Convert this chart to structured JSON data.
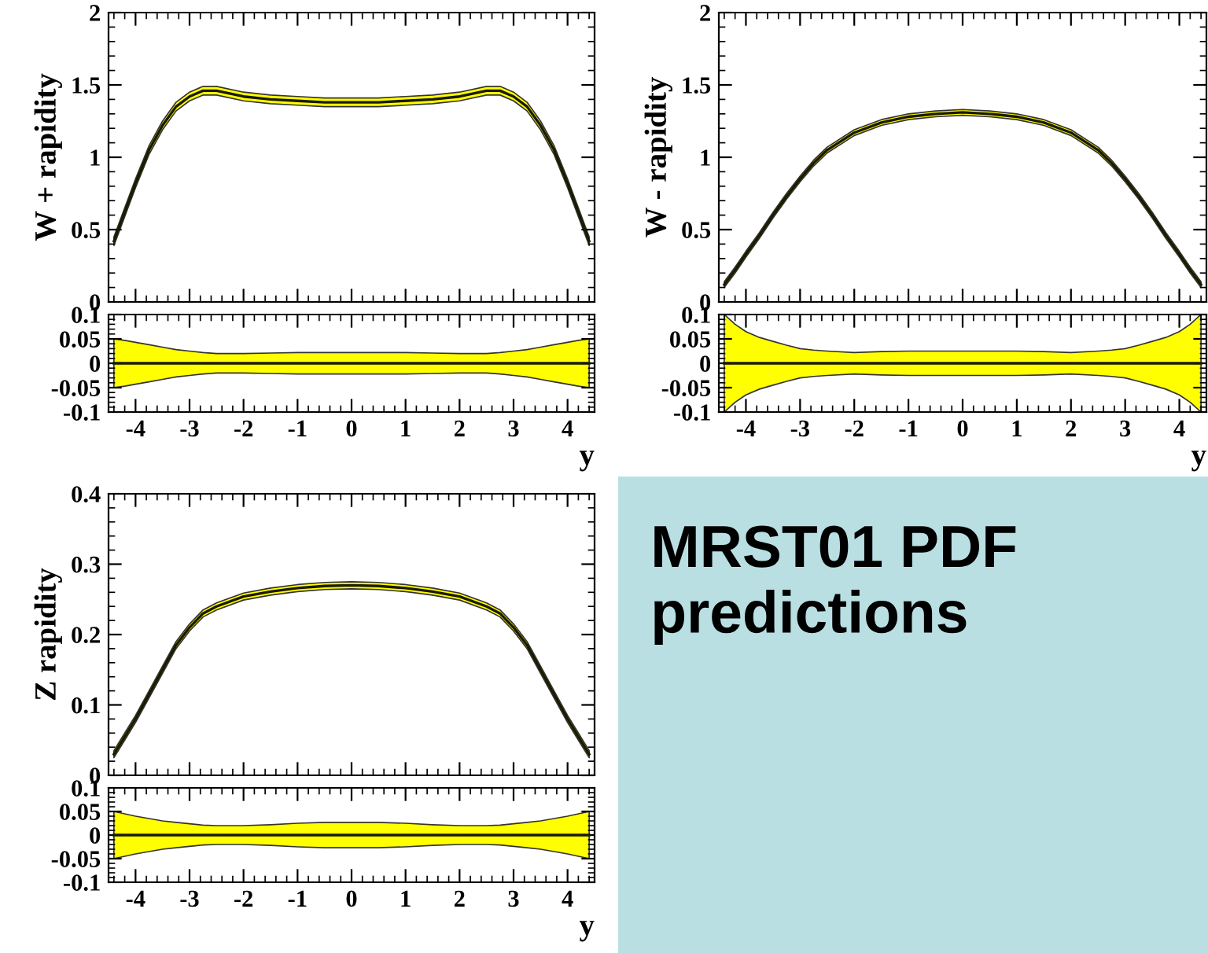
{
  "chart_data": [
    {
      "type": "line",
      "ylabel": "W + rapidity",
      "xlim": [
        -4.5,
        4.5
      ],
      "xticks": [
        -4,
        -3,
        -2,
        -1,
        0,
        1,
        2,
        3,
        4
      ],
      "ylim": [
        0,
        2
      ],
      "yticks": [
        0,
        0.5,
        1,
        1.5,
        2
      ],
      "tick_labels": "y",
      "x": [
        -4.4,
        -4.2,
        -4,
        -3.75,
        -3.5,
        -3.25,
        -3,
        -2.75,
        -2.5,
        -2,
        -1.5,
        -1,
        -0.5,
        0,
        0.5,
        1,
        1.5,
        2,
        2.5,
        2.75,
        3,
        3.25,
        3.5,
        3.75,
        4,
        4.2,
        4.4
      ],
      "series": [
        {
          "color": "#1a1a00",
          "values": [
            0.42,
            0.62,
            0.82,
            1.05,
            1.22,
            1.35,
            1.42,
            1.46,
            1.46,
            1.42,
            1.4,
            1.39,
            1.38,
            1.38,
            1.38,
            1.39,
            1.4,
            1.42,
            1.46,
            1.46,
            1.42,
            1.35,
            1.22,
            1.05,
            0.82,
            0.62,
            0.42
          ],
          "lower": [
            0.39,
            0.59,
            0.79,
            1.02,
            1.19,
            1.32,
            1.39,
            1.43,
            1.43,
            1.39,
            1.37,
            1.36,
            1.35,
            1.35,
            1.35,
            1.36,
            1.37,
            1.39,
            1.43,
            1.43,
            1.39,
            1.32,
            1.19,
            1.02,
            0.79,
            0.59,
            0.39
          ],
          "upper": [
            0.45,
            0.65,
            0.85,
            1.08,
            1.25,
            1.38,
            1.45,
            1.49,
            1.49,
            1.45,
            1.43,
            1.42,
            1.41,
            1.41,
            1.41,
            1.42,
            1.43,
            1.45,
            1.49,
            1.49,
            1.45,
            1.38,
            1.25,
            1.08,
            0.85,
            0.65,
            0.45
          ]
        }
      ]
    },
    {
      "type": "line",
      "xlabel": "y",
      "xlim": [
        -4.5,
        4.5
      ],
      "xticks": [
        -4,
        -3,
        -2,
        -1,
        0,
        1,
        2,
        3,
        4
      ],
      "ylim": [
        -0.1,
        0.1
      ],
      "yticks": [
        -0.1,
        -0.05,
        0,
        0.05,
        0.1
      ],
      "x": [
        -4.4,
        -4.2,
        -4,
        -3.75,
        -3.5,
        -3.25,
        -3,
        -2.75,
        -2.5,
        -2,
        -1.5,
        -1,
        -0.5,
        0,
        0.5,
        1,
        1.5,
        2,
        2.5,
        2.75,
        3,
        3.25,
        3.5,
        3.75,
        4,
        4.2,
        4.4
      ],
      "series": [
        {
          "color": "#1a1a00",
          "values": [
            0,
            0,
            0,
            0,
            0,
            0,
            0,
            0,
            0,
            0,
            0,
            0,
            0,
            0,
            0,
            0,
            0,
            0,
            0,
            0,
            0,
            0,
            0,
            0,
            0,
            0,
            0
          ],
          "lower": [
            -0.05,
            -0.047,
            -0.043,
            -0.038,
            -0.033,
            -0.028,
            -0.025,
            -0.022,
            -0.02,
            -0.02,
            -0.021,
            -0.022,
            -0.022,
            -0.022,
            -0.022,
            -0.022,
            -0.021,
            -0.02,
            -0.02,
            -0.022,
            -0.025,
            -0.028,
            -0.033,
            -0.038,
            -0.043,
            -0.047,
            -0.05
          ],
          "upper": [
            0.05,
            0.047,
            0.043,
            0.038,
            0.033,
            0.028,
            0.025,
            0.022,
            0.02,
            0.02,
            0.021,
            0.022,
            0.022,
            0.022,
            0.022,
            0.022,
            0.021,
            0.02,
            0.02,
            0.022,
            0.025,
            0.028,
            0.033,
            0.038,
            0.043,
            0.047,
            0.05
          ]
        }
      ]
    },
    {
      "type": "line",
      "ylabel": "W - rapidity",
      "xlim": [
        -4.5,
        4.5
      ],
      "xticks": [
        -4,
        -3,
        -2,
        -1,
        0,
        1,
        2,
        3,
        4
      ],
      "ylim": [
        0,
        2
      ],
      "yticks": [
        0,
        0.5,
        1,
        1.5,
        2
      ],
      "tick_labels": "y",
      "x": [
        -4.4,
        -4.2,
        -4,
        -3.75,
        -3.5,
        -3.25,
        -3,
        -2.75,
        -2.5,
        -2,
        -1.5,
        -1,
        -0.5,
        0,
        0.5,
        1,
        1.5,
        2,
        2.5,
        2.75,
        3,
        3.25,
        3.5,
        3.75,
        4,
        4.2,
        4.4
      ],
      "series": [
        {
          "color": "#1a1a00",
          "values": [
            0.12,
            0.22,
            0.33,
            0.46,
            0.6,
            0.73,
            0.85,
            0.96,
            1.05,
            1.17,
            1.24,
            1.28,
            1.3,
            1.31,
            1.3,
            1.28,
            1.24,
            1.17,
            1.05,
            0.96,
            0.85,
            0.73,
            0.6,
            0.46,
            0.33,
            0.22,
            0.12
          ],
          "lower": [
            0.1,
            0.2,
            0.31,
            0.44,
            0.58,
            0.71,
            0.83,
            0.94,
            1.03,
            1.15,
            1.22,
            1.26,
            1.28,
            1.29,
            1.28,
            1.26,
            1.22,
            1.15,
            1.03,
            0.94,
            0.83,
            0.71,
            0.58,
            0.44,
            0.31,
            0.2,
            0.1
          ],
          "upper": [
            0.14,
            0.24,
            0.35,
            0.48,
            0.62,
            0.75,
            0.87,
            0.98,
            1.07,
            1.19,
            1.26,
            1.3,
            1.32,
            1.33,
            1.32,
            1.3,
            1.26,
            1.19,
            1.07,
            0.98,
            0.87,
            0.75,
            0.62,
            0.48,
            0.35,
            0.24,
            0.14
          ]
        }
      ]
    },
    {
      "type": "line",
      "xlabel": "y",
      "xlim": [
        -4.5,
        4.5
      ],
      "xticks": [
        -4,
        -3,
        -2,
        -1,
        0,
        1,
        2,
        3,
        4
      ],
      "ylim": [
        -0.1,
        0.1
      ],
      "yticks": [
        -0.1,
        -0.05,
        0,
        0.05,
        0.1
      ],
      "x": [
        -4.4,
        -4.2,
        -4,
        -3.75,
        -3.5,
        -3.25,
        -3,
        -2.75,
        -2.5,
        -2,
        -1.5,
        -1,
        -0.5,
        0,
        0.5,
        1,
        1.5,
        2,
        2.5,
        2.75,
        3,
        3.25,
        3.5,
        3.75,
        4,
        4.2,
        4.4
      ],
      "series": [
        {
          "color": "#1a1a00",
          "values": [
            0,
            0,
            0,
            0,
            0,
            0,
            0,
            0,
            0,
            0,
            0,
            0,
            0,
            0,
            0,
            0,
            0,
            0,
            0,
            0,
            0,
            0,
            0,
            0,
            0,
            0,
            0
          ],
          "lower": [
            -0.1,
            -0.08,
            -0.065,
            -0.053,
            -0.045,
            -0.037,
            -0.03,
            -0.027,
            -0.025,
            -0.022,
            -0.024,
            -0.025,
            -0.025,
            -0.025,
            -0.025,
            -0.025,
            -0.024,
            -0.022,
            -0.025,
            -0.027,
            -0.03,
            -0.037,
            -0.045,
            -0.053,
            -0.065,
            -0.08,
            -0.1
          ],
          "upper": [
            0.1,
            0.08,
            0.065,
            0.053,
            0.045,
            0.037,
            0.03,
            0.027,
            0.025,
            0.022,
            0.024,
            0.025,
            0.025,
            0.025,
            0.025,
            0.025,
            0.024,
            0.022,
            0.025,
            0.027,
            0.03,
            0.037,
            0.045,
            0.053,
            0.065,
            0.08,
            0.1
          ]
        }
      ]
    },
    {
      "type": "line",
      "ylabel": "Z rapidity",
      "xlim": [
        -4.5,
        4.5
      ],
      "xticks": [
        -4,
        -3,
        -2,
        -1,
        0,
        1,
        2,
        3,
        4
      ],
      "ylim": [
        0,
        0.4
      ],
      "yticks": [
        0,
        0.1,
        0.2,
        0.3,
        0.4
      ],
      "tick_labels": "y",
      "x": [
        -4.4,
        -4.2,
        -4,
        -3.75,
        -3.5,
        -3.25,
        -3,
        -2.75,
        -2.5,
        -2,
        -1.5,
        -1,
        -0.5,
        0,
        0.5,
        1,
        1.5,
        2,
        2.5,
        2.75,
        3,
        3.25,
        3.5,
        3.75,
        4,
        4.2,
        4.4
      ],
      "series": [
        {
          "color": "#1a1a00",
          "values": [
            0.03,
            0.055,
            0.08,
            0.115,
            0.15,
            0.185,
            0.21,
            0.23,
            0.24,
            0.254,
            0.261,
            0.266,
            0.269,
            0.27,
            0.269,
            0.266,
            0.261,
            0.254,
            0.24,
            0.23,
            0.21,
            0.185,
            0.15,
            0.115,
            0.08,
            0.055,
            0.03
          ],
          "lower": [
            0.025,
            0.05,
            0.075,
            0.11,
            0.145,
            0.18,
            0.205,
            0.225,
            0.235,
            0.249,
            0.256,
            0.261,
            0.264,
            0.265,
            0.264,
            0.261,
            0.256,
            0.249,
            0.235,
            0.225,
            0.205,
            0.18,
            0.145,
            0.11,
            0.075,
            0.05,
            0.025
          ],
          "upper": [
            0.035,
            0.06,
            0.085,
            0.12,
            0.155,
            0.19,
            0.215,
            0.235,
            0.245,
            0.259,
            0.266,
            0.271,
            0.274,
            0.275,
            0.274,
            0.271,
            0.266,
            0.259,
            0.245,
            0.235,
            0.215,
            0.19,
            0.155,
            0.12,
            0.085,
            0.06,
            0.035
          ]
        }
      ]
    },
    {
      "type": "line",
      "xlabel": "y",
      "xlim": [
        -4.5,
        4.5
      ],
      "xticks": [
        -4,
        -3,
        -2,
        -1,
        0,
        1,
        2,
        3,
        4
      ],
      "ylim": [
        -0.1,
        0.1
      ],
      "yticks": [
        -0.1,
        -0.05,
        0,
        0.05,
        0.1
      ],
      "x": [
        -4.4,
        -4.2,
        -4,
        -3.75,
        -3.5,
        -3.25,
        -3,
        -2.75,
        -2.5,
        -2,
        -1.5,
        -1,
        -0.5,
        0,
        0.5,
        1,
        1.5,
        2,
        2.5,
        2.75,
        3,
        3.25,
        3.5,
        3.75,
        4,
        4.2,
        4.4
      ],
      "series": [
        {
          "color": "#1a1a00",
          "values": [
            0,
            0,
            0,
            0,
            0,
            0,
            0,
            0,
            0,
            0,
            0,
            0,
            0,
            0,
            0,
            0,
            0,
            0,
            0,
            0,
            0,
            0,
            0,
            0,
            0,
            0,
            0
          ],
          "lower": [
            -0.05,
            -0.045,
            -0.04,
            -0.035,
            -0.03,
            -0.027,
            -0.024,
            -0.021,
            -0.02,
            -0.02,
            -0.022,
            -0.025,
            -0.027,
            -0.027,
            -0.027,
            -0.025,
            -0.022,
            -0.02,
            -0.02,
            -0.021,
            -0.024,
            -0.027,
            -0.03,
            -0.035,
            -0.04,
            -0.045,
            -0.05
          ],
          "upper": [
            0.05,
            0.045,
            0.04,
            0.035,
            0.03,
            0.027,
            0.024,
            0.021,
            0.02,
            0.02,
            0.022,
            0.025,
            0.027,
            0.027,
            0.027,
            0.025,
            0.022,
            0.02,
            0.02,
            0.021,
            0.024,
            0.027,
            0.03,
            0.035,
            0.04,
            0.045,
            0.05
          ]
        }
      ]
    },
    {
      "type": "other",
      "title": "MRST01 PDF predictions",
      "color": "#b9dfe3"
    }
  ]
}
